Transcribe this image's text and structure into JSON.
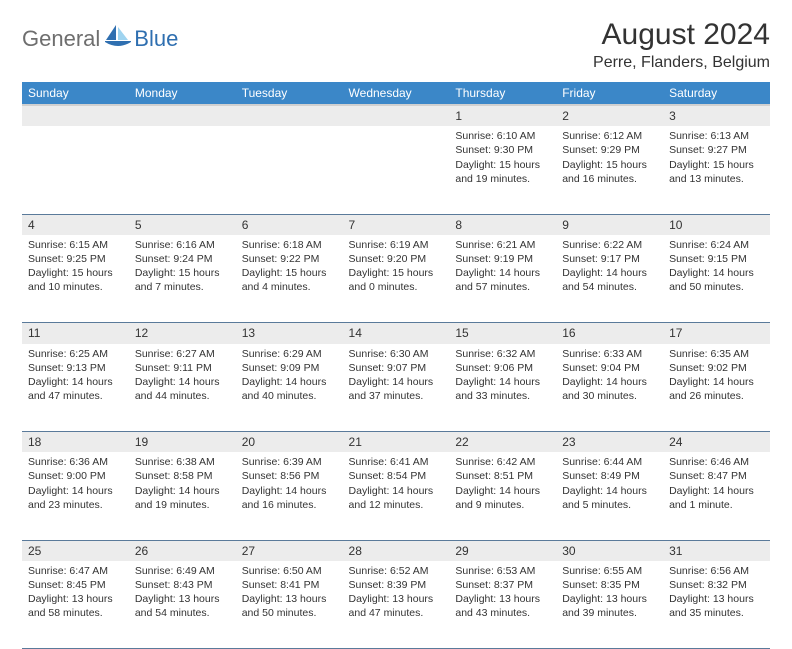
{
  "logo": {
    "part1": "General",
    "part2": "Blue"
  },
  "title": "August 2024",
  "location": "Perre, Flanders, Belgium",
  "colors": {
    "header_bg": "#3b87c8",
    "header_text": "#ffffff",
    "daynum_bg": "#ececec",
    "row_border": "#5a7a9a",
    "logo_gray": "#6e6e6e",
    "logo_blue": "#2f6fb0",
    "sail_blue": "#2f6fb0",
    "sky_blue": "#9fd4f0"
  },
  "weekdays": [
    "Sunday",
    "Monday",
    "Tuesday",
    "Wednesday",
    "Thursday",
    "Friday",
    "Saturday"
  ],
  "weeks": [
    [
      null,
      null,
      null,
      null,
      {
        "n": "1",
        "sr": "6:10 AM",
        "ss": "9:30 PM",
        "dl": "15 hours and 19 minutes."
      },
      {
        "n": "2",
        "sr": "6:12 AM",
        "ss": "9:29 PM",
        "dl": "15 hours and 16 minutes."
      },
      {
        "n": "3",
        "sr": "6:13 AM",
        "ss": "9:27 PM",
        "dl": "15 hours and 13 minutes."
      }
    ],
    [
      {
        "n": "4",
        "sr": "6:15 AM",
        "ss": "9:25 PM",
        "dl": "15 hours and 10 minutes."
      },
      {
        "n": "5",
        "sr": "6:16 AM",
        "ss": "9:24 PM",
        "dl": "15 hours and 7 minutes."
      },
      {
        "n": "6",
        "sr": "6:18 AM",
        "ss": "9:22 PM",
        "dl": "15 hours and 4 minutes."
      },
      {
        "n": "7",
        "sr": "6:19 AM",
        "ss": "9:20 PM",
        "dl": "15 hours and 0 minutes."
      },
      {
        "n": "8",
        "sr": "6:21 AM",
        "ss": "9:19 PM",
        "dl": "14 hours and 57 minutes."
      },
      {
        "n": "9",
        "sr": "6:22 AM",
        "ss": "9:17 PM",
        "dl": "14 hours and 54 minutes."
      },
      {
        "n": "10",
        "sr": "6:24 AM",
        "ss": "9:15 PM",
        "dl": "14 hours and 50 minutes."
      }
    ],
    [
      {
        "n": "11",
        "sr": "6:25 AM",
        "ss": "9:13 PM",
        "dl": "14 hours and 47 minutes."
      },
      {
        "n": "12",
        "sr": "6:27 AM",
        "ss": "9:11 PM",
        "dl": "14 hours and 44 minutes."
      },
      {
        "n": "13",
        "sr": "6:29 AM",
        "ss": "9:09 PM",
        "dl": "14 hours and 40 minutes."
      },
      {
        "n": "14",
        "sr": "6:30 AM",
        "ss": "9:07 PM",
        "dl": "14 hours and 37 minutes."
      },
      {
        "n": "15",
        "sr": "6:32 AM",
        "ss": "9:06 PM",
        "dl": "14 hours and 33 minutes."
      },
      {
        "n": "16",
        "sr": "6:33 AM",
        "ss": "9:04 PM",
        "dl": "14 hours and 30 minutes."
      },
      {
        "n": "17",
        "sr": "6:35 AM",
        "ss": "9:02 PM",
        "dl": "14 hours and 26 minutes."
      }
    ],
    [
      {
        "n": "18",
        "sr": "6:36 AM",
        "ss": "9:00 PM",
        "dl": "14 hours and 23 minutes."
      },
      {
        "n": "19",
        "sr": "6:38 AM",
        "ss": "8:58 PM",
        "dl": "14 hours and 19 minutes."
      },
      {
        "n": "20",
        "sr": "6:39 AM",
        "ss": "8:56 PM",
        "dl": "14 hours and 16 minutes."
      },
      {
        "n": "21",
        "sr": "6:41 AM",
        "ss": "8:54 PM",
        "dl": "14 hours and 12 minutes."
      },
      {
        "n": "22",
        "sr": "6:42 AM",
        "ss": "8:51 PM",
        "dl": "14 hours and 9 minutes."
      },
      {
        "n": "23",
        "sr": "6:44 AM",
        "ss": "8:49 PM",
        "dl": "14 hours and 5 minutes."
      },
      {
        "n": "24",
        "sr": "6:46 AM",
        "ss": "8:47 PM",
        "dl": "14 hours and 1 minute."
      }
    ],
    [
      {
        "n": "25",
        "sr": "6:47 AM",
        "ss": "8:45 PM",
        "dl": "13 hours and 58 minutes."
      },
      {
        "n": "26",
        "sr": "6:49 AM",
        "ss": "8:43 PM",
        "dl": "13 hours and 54 minutes."
      },
      {
        "n": "27",
        "sr": "6:50 AM",
        "ss": "8:41 PM",
        "dl": "13 hours and 50 minutes."
      },
      {
        "n": "28",
        "sr": "6:52 AM",
        "ss": "8:39 PM",
        "dl": "13 hours and 47 minutes."
      },
      {
        "n": "29",
        "sr": "6:53 AM",
        "ss": "8:37 PM",
        "dl": "13 hours and 43 minutes."
      },
      {
        "n": "30",
        "sr": "6:55 AM",
        "ss": "8:35 PM",
        "dl": "13 hours and 39 minutes."
      },
      {
        "n": "31",
        "sr": "6:56 AM",
        "ss": "8:32 PM",
        "dl": "13 hours and 35 minutes."
      }
    ]
  ],
  "labels": {
    "sunrise": "Sunrise:",
    "sunset": "Sunset:",
    "daylight": "Daylight:"
  }
}
